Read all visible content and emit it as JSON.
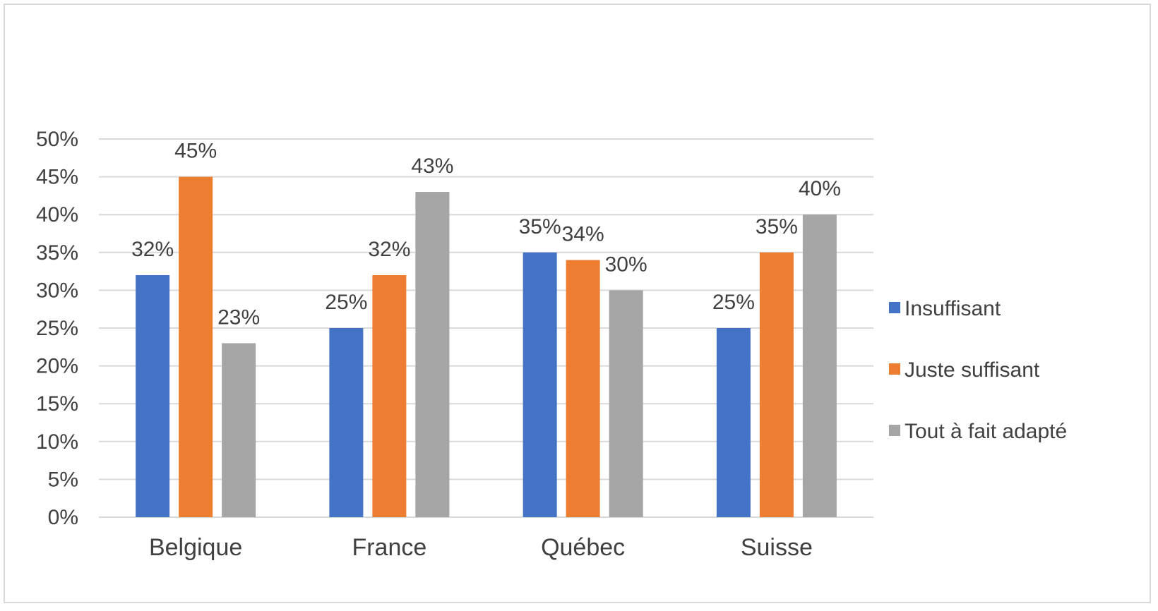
{
  "chart_data": {
    "type": "bar",
    "title": "",
    "xlabel": "",
    "ylabel": "",
    "categories": [
      "Belgique",
      "France",
      "Québec",
      "Suisse"
    ],
    "series": [
      {
        "name": "Insuffisant",
        "color": "#4472C4",
        "values": [
          32,
          25,
          35,
          25
        ],
        "labels": [
          "32%",
          "25%",
          "35%",
          "25%"
        ]
      },
      {
        "name": "Juste suffisant",
        "color": "#ED7D31",
        "values": [
          45,
          32,
          34,
          35
        ],
        "labels": [
          "45%",
          "32%",
          "34%",
          "35%"
        ]
      },
      {
        "name": "Tout à fait adapté",
        "color": "#A5A5A5",
        "values": [
          23,
          43,
          30,
          40
        ],
        "labels": [
          "23%",
          "43%",
          "30%",
          "40%"
        ]
      }
    ],
    "ylim": [
      0,
      50
    ],
    "yticks": [
      0,
      5,
      10,
      15,
      20,
      25,
      30,
      35,
      40,
      45,
      50
    ],
    "ytick_labels": [
      "0%",
      "5%",
      "10%",
      "15%",
      "20%",
      "25%",
      "30%",
      "35%",
      "40%",
      "45%",
      "50%"
    ],
    "grid": true,
    "gridline_color": "#d9d9d9",
    "legend_position": "right"
  }
}
